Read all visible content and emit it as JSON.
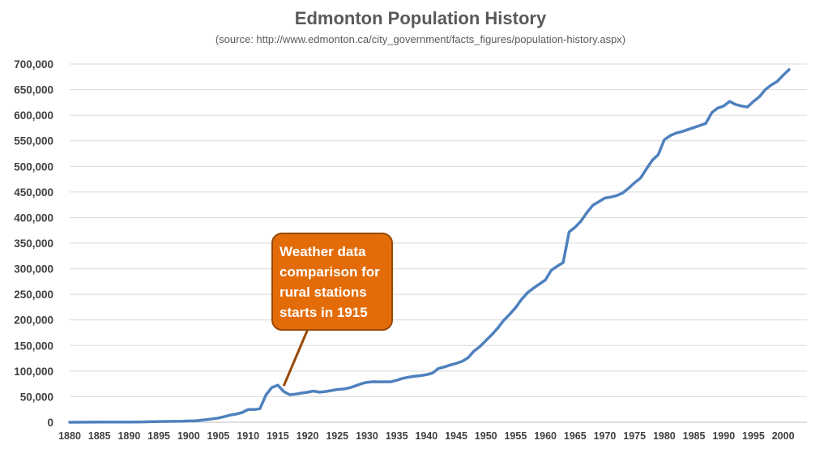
{
  "chart_data": {
    "type": "line",
    "title": "Edmonton Population History",
    "subtitle": "(source: http://www.edmonton.ca/city_government/facts_figures/population-history.aspx)",
    "xlabel": "",
    "ylabel": "",
    "ylim": [
      0,
      700000
    ],
    "xlim": [
      1880,
      2004
    ],
    "y_ticks": [
      "0",
      "50,000",
      "100,000",
      "150,000",
      "200,000",
      "250,000",
      "300,000",
      "350,000",
      "400,000",
      "450,000",
      "500,000",
      "550,000",
      "600,000",
      "650,000",
      "700,000"
    ],
    "y_tick_values": [
      0,
      50000,
      100000,
      150000,
      200000,
      250000,
      300000,
      350000,
      400000,
      450000,
      500000,
      550000,
      600000,
      650000,
      700000
    ],
    "x_ticks": [
      "1880",
      "1885",
      "1890",
      "1895",
      "1900",
      "1905",
      "1910",
      "1915",
      "1920",
      "1925",
      "1930",
      "1935",
      "1940",
      "1945",
      "1950",
      "1955",
      "1960",
      "1965",
      "1970",
      "1975",
      "1980",
      "1985",
      "1990",
      "1995",
      "2000"
    ],
    "x_tick_values": [
      1880,
      1885,
      1890,
      1895,
      1900,
      1905,
      1910,
      1915,
      1920,
      1925,
      1930,
      1935,
      1940,
      1945,
      1950,
      1955,
      1960,
      1965,
      1970,
      1975,
      1980,
      1985,
      1990,
      1995,
      2000
    ],
    "grid": true,
    "legend": "none",
    "series": [
      {
        "color": "#4f81bd",
        "points": [
          [
            1880,
            0
          ],
          [
            1885,
            300
          ],
          [
            1890,
            500
          ],
          [
            1892,
            700
          ],
          [
            1895,
            1500
          ],
          [
            1899,
            2000
          ],
          [
            1900,
            2600
          ],
          [
            1901,
            2600
          ],
          [
            1903,
            5000
          ],
          [
            1905,
            8300
          ],
          [
            1906,
            11000
          ],
          [
            1907,
            14000
          ],
          [
            1908,
            16000
          ],
          [
            1909,
            19000
          ],
          [
            1910,
            24900
          ],
          [
            1911,
            24900
          ],
          [
            1912,
            26500
          ],
          [
            1913,
            53000
          ],
          [
            1914,
            68000
          ],
          [
            1915,
            72500
          ],
          [
            1916,
            60000
          ],
          [
            1917,
            53800
          ],
          [
            1918,
            55000
          ],
          [
            1919,
            57000
          ],
          [
            1920,
            58600
          ],
          [
            1921,
            61000
          ],
          [
            1922,
            58800
          ],
          [
            1923,
            60000
          ],
          [
            1924,
            62000
          ],
          [
            1925,
            64000
          ],
          [
            1926,
            65000
          ],
          [
            1927,
            67000
          ],
          [
            1928,
            71000
          ],
          [
            1929,
            75000
          ],
          [
            1930,
            78000
          ],
          [
            1931,
            79200
          ],
          [
            1932,
            79000
          ],
          [
            1933,
            79000
          ],
          [
            1934,
            79000
          ],
          [
            1935,
            82000
          ],
          [
            1936,
            85800
          ],
          [
            1937,
            88000
          ],
          [
            1938,
            90000
          ],
          [
            1939,
            91000
          ],
          [
            1940,
            93000
          ],
          [
            1941,
            96000
          ],
          [
            1942,
            105000
          ],
          [
            1943,
            108000
          ],
          [
            1944,
            112000
          ],
          [
            1945,
            115000
          ],
          [
            1946,
            119000
          ],
          [
            1947,
            126000
          ],
          [
            1948,
            139000
          ],
          [
            1949,
            148000
          ],
          [
            1950,
            159600
          ],
          [
            1951,
            171000
          ],
          [
            1952,
            184000
          ],
          [
            1953,
            199000
          ],
          [
            1954,
            211000
          ],
          [
            1955,
            224000
          ],
          [
            1956,
            240000
          ],
          [
            1957,
            253000
          ],
          [
            1958,
            262000
          ],
          [
            1959,
            270000
          ],
          [
            1960,
            278000
          ],
          [
            1961,
            297000
          ],
          [
            1962,
            305000
          ],
          [
            1963,
            312000
          ],
          [
            1964,
            372000
          ],
          [
            1965,
            381000
          ],
          [
            1966,
            393000
          ],
          [
            1967,
            410000
          ],
          [
            1968,
            424000
          ],
          [
            1969,
            431000
          ],
          [
            1970,
            438000
          ],
          [
            1971,
            440000
          ],
          [
            1972,
            443000
          ],
          [
            1973,
            448000
          ],
          [
            1974,
            457000
          ],
          [
            1975,
            468000
          ],
          [
            1976,
            477000
          ],
          [
            1977,
            495000
          ],
          [
            1978,
            512000
          ],
          [
            1979,
            523000
          ],
          [
            1980,
            552000
          ],
          [
            1981,
            560000
          ],
          [
            1982,
            565000
          ],
          [
            1983,
            568000
          ],
          [
            1984,
            572000
          ],
          [
            1985,
            576000
          ],
          [
            1986,
            580000
          ],
          [
            1987,
            584000
          ],
          [
            1988,
            605000
          ],
          [
            1989,
            614000
          ],
          [
            1990,
            618000
          ],
          [
            1991,
            627000
          ],
          [
            1992,
            621000
          ],
          [
            1993,
            618000
          ],
          [
            1994,
            616000
          ],
          [
            1995,
            627000
          ],
          [
            1996,
            636000
          ],
          [
            1997,
            650000
          ],
          [
            1998,
            659000
          ],
          [
            1999,
            666000
          ],
          [
            2000,
            678000
          ],
          [
            2001,
            689000
          ]
        ]
      }
    ],
    "annotations": [
      {
        "lines": [
          "Weather data",
          "comparison for",
          "rural stations",
          "starts in 1915"
        ],
        "fill": "#e36c09",
        "border": "#974806",
        "pointer_color": "#974806",
        "target": [
          1916,
          71000
        ]
      }
    ]
  }
}
